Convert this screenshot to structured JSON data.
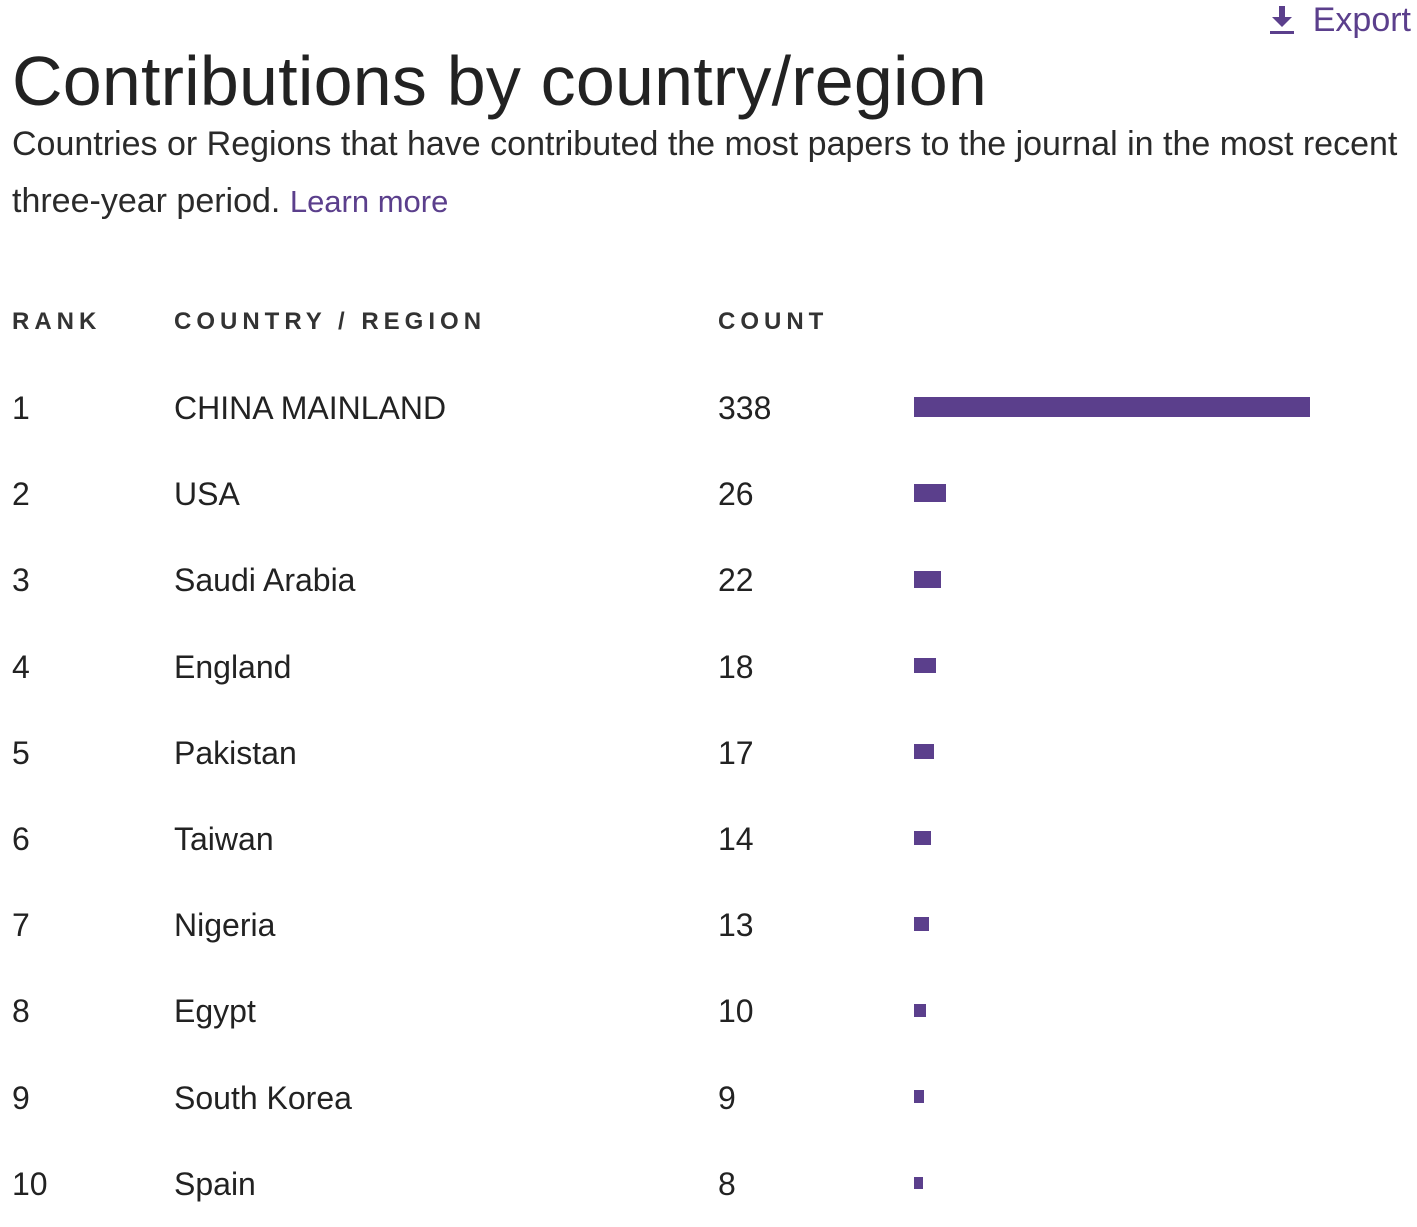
{
  "page": {
    "title": "Contributions by country/region",
    "export_label": "Export",
    "export_icon": "download-icon",
    "description": "Countries or Regions that have contributed the most papers to the journal in the most recent three-year period.",
    "learn_more": "Learn more",
    "accent_color": "#5b3f8c"
  },
  "table": {
    "headers": {
      "rank": "RANK",
      "country": "COUNTRY / REGION",
      "count": "COUNT"
    },
    "rows": [
      {
        "rank": "1",
        "country": "CHINA MAINLAND",
        "count": "338"
      },
      {
        "rank": "2",
        "country": "USA",
        "count": "26"
      },
      {
        "rank": "3",
        "country": "Saudi Arabia",
        "count": "22"
      },
      {
        "rank": "4",
        "country": "England",
        "count": "18"
      },
      {
        "rank": "5",
        "country": "Pakistan",
        "count": "17"
      },
      {
        "rank": "6",
        "country": "Taiwan",
        "count": "14"
      },
      {
        "rank": "7",
        "country": "Nigeria",
        "count": "13"
      },
      {
        "rank": "8",
        "country": "Egypt",
        "count": "10"
      },
      {
        "rank": "9",
        "country": "South Korea",
        "count": "9"
      },
      {
        "rank": "10",
        "country": "Spain",
        "count": "8"
      }
    ]
  },
  "chart_data": {
    "type": "bar",
    "categories": [
      "CHINA MAINLAND",
      "USA",
      "Saudi Arabia",
      "England",
      "Pakistan",
      "Taiwan",
      "Nigeria",
      "Egypt",
      "South Korea",
      "Spain"
    ],
    "values": [
      338,
      26,
      22,
      18,
      17,
      14,
      13,
      10,
      9,
      8
    ],
    "xlabel": "",
    "ylabel": "",
    "grid": false,
    "color": "#5b3f8c"
  }
}
